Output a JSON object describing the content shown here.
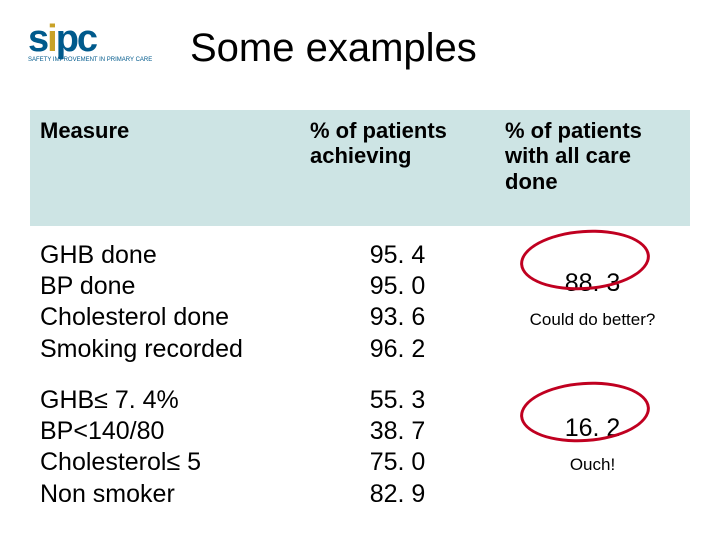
{
  "logo": {
    "text_s": "s",
    "text_i": "i",
    "text_pc": "pc",
    "subtitle": "SAFETY IMPROVEMENT IN PRIMARY CARE"
  },
  "title": "Some examples",
  "headers": {
    "col1": "Measure",
    "col2": "% of patients achieving",
    "col3": "% of patients with all care done"
  },
  "group1": {
    "m1": "GHB done",
    "m2": "BP done",
    "m3": "Cholesterol done",
    "m4": "Smoking recorded",
    "v1": "95. 4",
    "v2": "95. 0",
    "v3": "93. 6",
    "v4": "96. 2",
    "result": "88. 3",
    "caption": "Could do better?"
  },
  "group2": {
    "m1": "GHB≤ 7. 4%",
    "m2": "BP<140/80",
    "m3": "Cholesterol≤ 5",
    "m4": "Non smoker",
    "v1": "55. 3",
    "v2": "38. 7",
    "v3": "75. 0",
    "v4": "82. 9",
    "result": "16. 2",
    "caption": "Ouch!"
  },
  "colors": {
    "header_bg": "#cde4e4",
    "circle": "#c00020",
    "logo_blue": "#005a8c",
    "logo_gold": "#c9a227"
  }
}
